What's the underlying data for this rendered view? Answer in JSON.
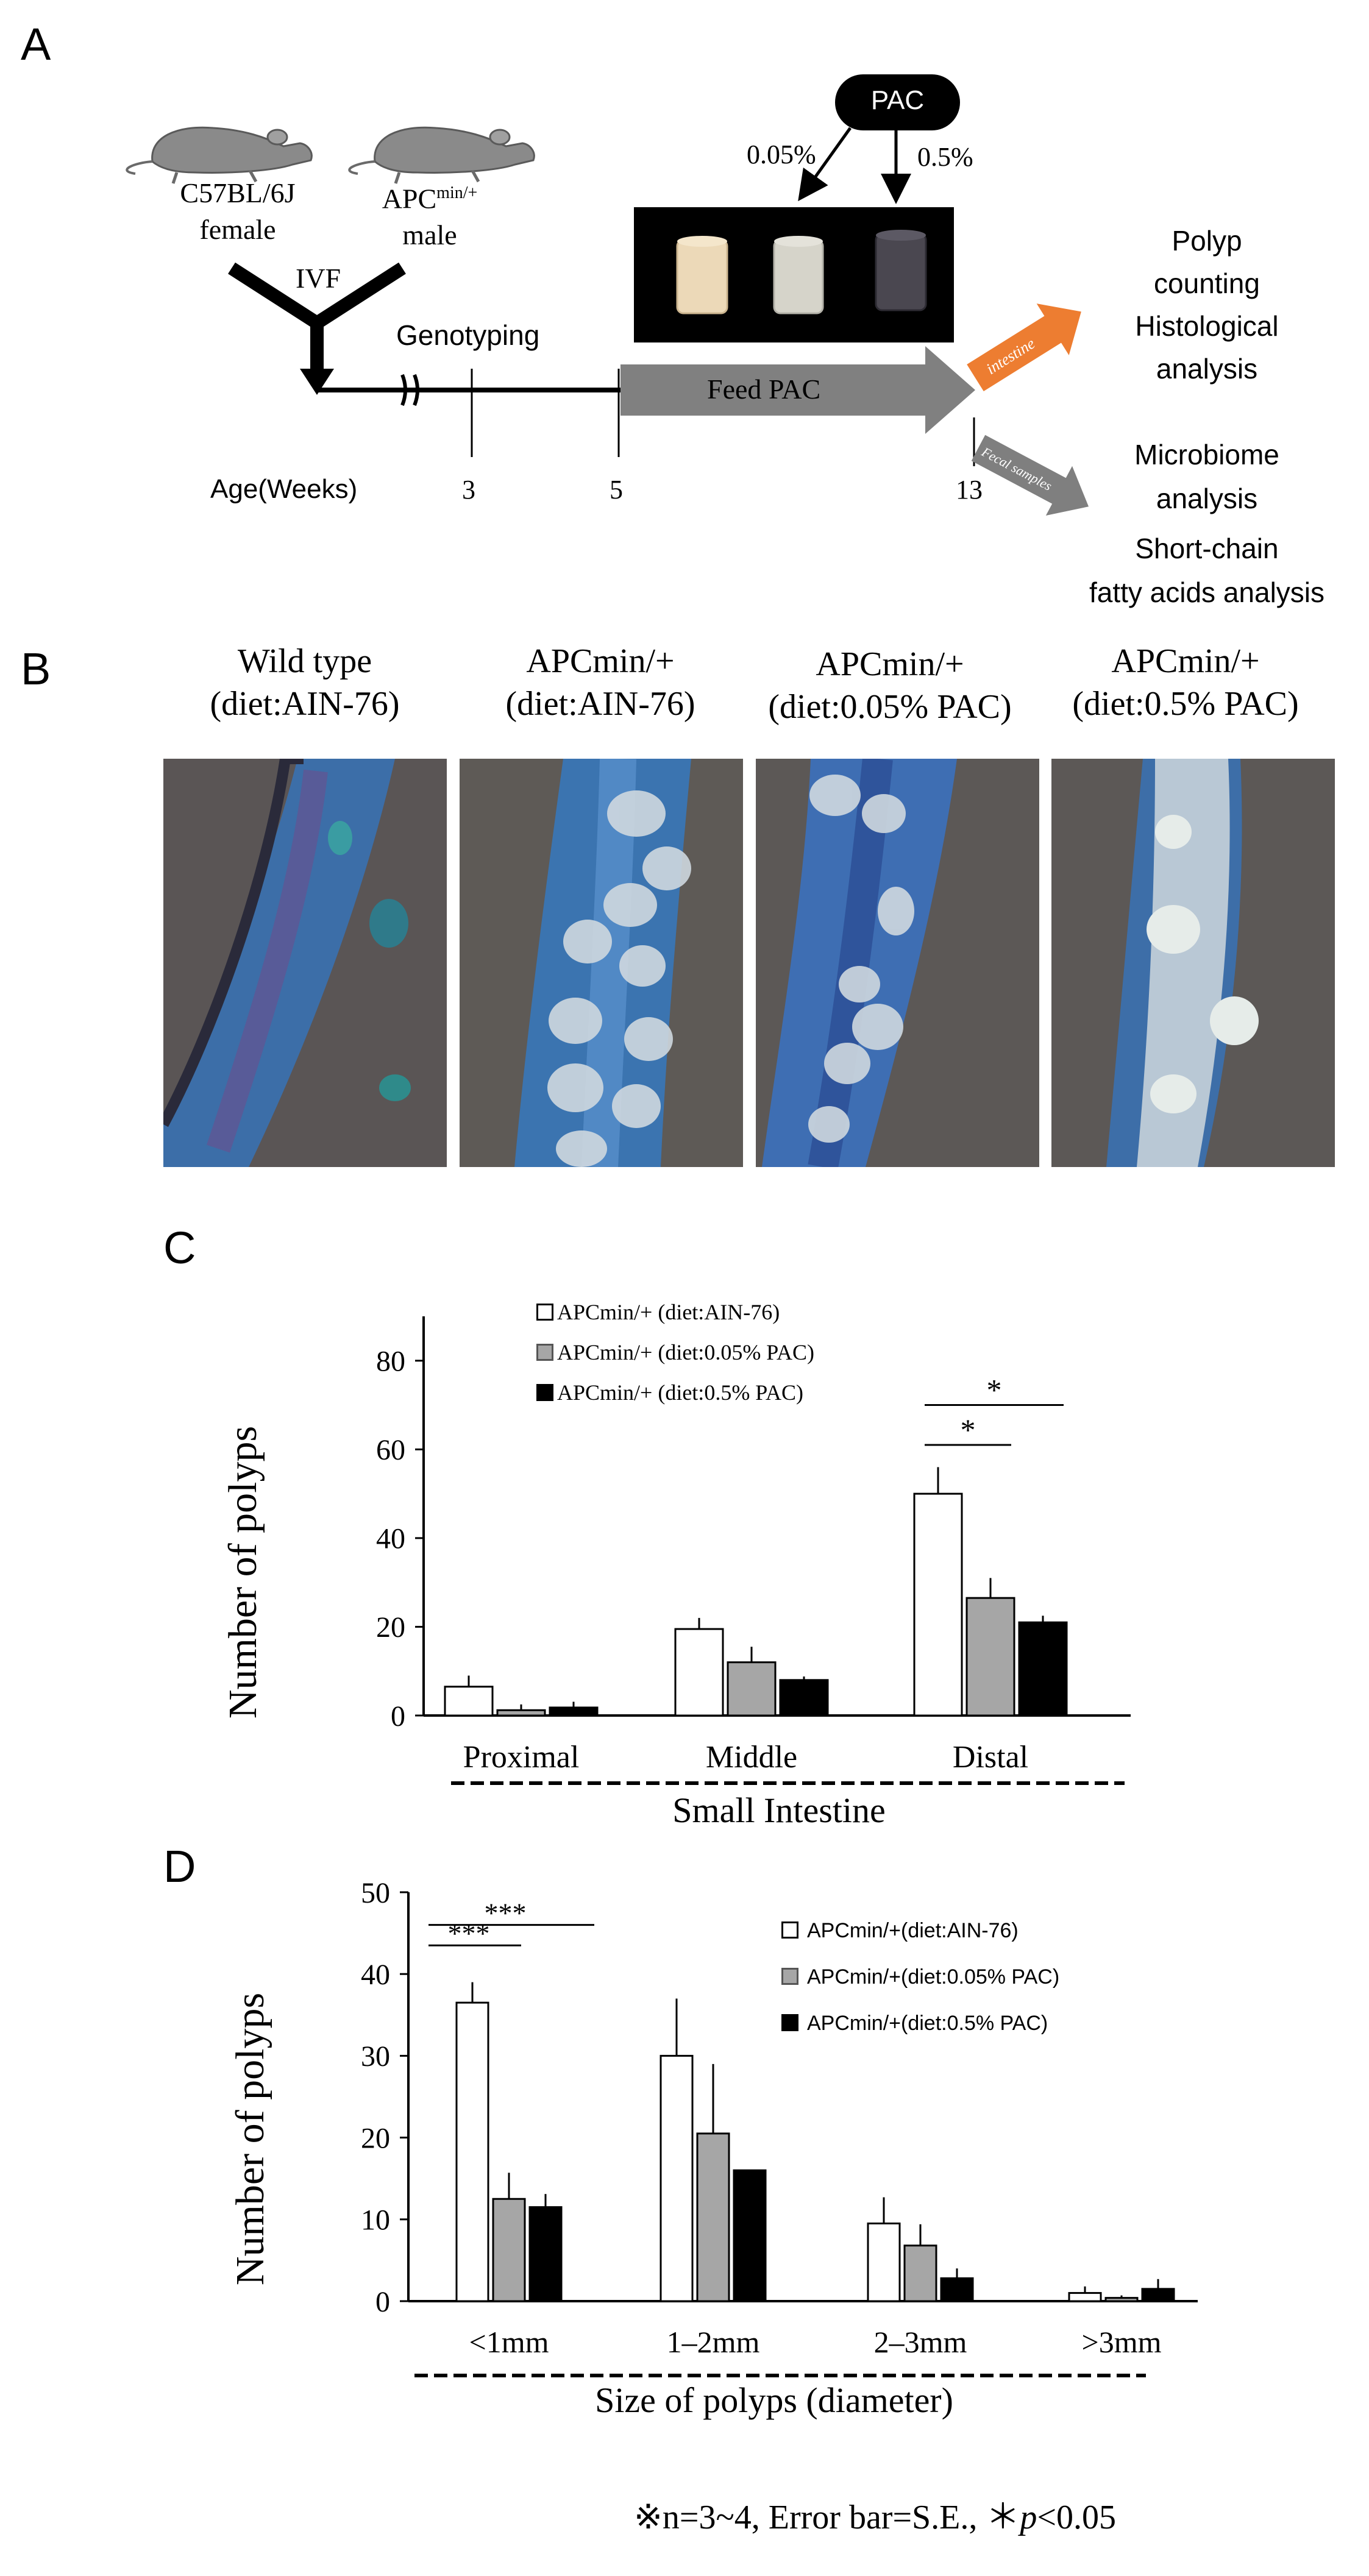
{
  "panel_a": {
    "letter": "A",
    "mouse1_label_1": "C57BL/6J",
    "mouse1_label_2": "female",
    "mouse2_label_1": "APC",
    "mouse2_label_sup": "min/+",
    "mouse2_label_2": "male",
    "ivf": "IVF",
    "genotyping": "Genotyping",
    "pac_label": "PAC",
    "pac_pct_low": "0.05%",
    "pac_pct_high": "0.5%",
    "feed_pac": "Feed PAC",
    "age_label": "Age(Weeks)",
    "week_3": "3",
    "week_5": "5",
    "week_13": "13",
    "arrow_intestine": "intestine",
    "arrow_fecal": "Fecal samples",
    "out1_l1": "Polyp",
    "out1_l2": "counting",
    "out1_l3": "Histological",
    "out1_l4": "analysis",
    "out2_l1": "Microbiome",
    "out2_l2": "analysis",
    "out2_l3": "Short-chain",
    "out2_l4": "fatty acids analysis",
    "colors": {
      "orange": "#ed7d31",
      "gray_arrow": "#7f7f7f",
      "pellet_light": "#ecd9b8",
      "pellet_mid": "#d8d6cc",
      "pellet_dark": "#4a4750"
    }
  },
  "panel_b": {
    "letter": "B",
    "groups": [
      {
        "line1": "Wild type",
        "line2": "(diet:AIN-76)"
      },
      {
        "line1": "APCmin/+",
        "line2": "(diet:AIN-76)"
      },
      {
        "line1": "APCmin/+",
        "line2": "(diet:0.05% PAC)"
      },
      {
        "line1": "APCmin/+",
        "line2": "(diet:0.5% PAC)"
      }
    ]
  },
  "chart_data": [
    {
      "panel": "C",
      "type": "bar",
      "categories": [
        "Proximal",
        "Middle",
        "Distal"
      ],
      "group_label": "Small Intestine",
      "ylabel": "Number of  polyps",
      "ylim": [
        0,
        90
      ],
      "yticks": [
        0,
        20,
        40,
        60,
        80
      ],
      "series": [
        {
          "name": "APCmin/+ (diet:AIN-76)",
          "color": "#ffffff",
          "values": [
            6.5,
            19.5,
            50
          ],
          "errors": [
            2.5,
            2.5,
            6
          ]
        },
        {
          "name": "APCmin/+ (diet:0.05% PAC)",
          "color": "#a6a6a6",
          "values": [
            1.2,
            12,
            26.5
          ],
          "errors": [
            1.3,
            3.5,
            4.5
          ]
        },
        {
          "name": "APCmin/+ (diet:0.5% PAC)",
          "color": "#000000",
          "values": [
            1.8,
            8,
            21
          ],
          "errors": [
            1.3,
            0.8,
            1.5
          ]
        }
      ],
      "significance": [
        {
          "category": "Distal",
          "from": 0,
          "to": 1,
          "label": "*"
        },
        {
          "category": "Distal",
          "from": 0,
          "to": 2,
          "label": "*"
        }
      ],
      "legend": "top-center"
    },
    {
      "panel": "D",
      "type": "bar",
      "categories": [
        "<1mm",
        "1–2mm",
        "2–3mm",
        ">3mm"
      ],
      "xlabel": "Size of polyps (diameter)",
      "ylabel": "Number of polyps",
      "ylim": [
        0,
        50
      ],
      "yticks": [
        0,
        10,
        20,
        30,
        40,
        50
      ],
      "series": [
        {
          "name": "APCmin/+(diet:AIN-76)",
          "color": "#ffffff",
          "values": [
            36.5,
            30,
            9.5,
            1
          ],
          "errors": [
            2.5,
            7,
            3.2,
            0.8
          ]
        },
        {
          "name": "APCmin/+(diet:0.05% PAC)",
          "color": "#a6a6a6",
          "values": [
            12.5,
            20.5,
            6.8,
            0.4
          ],
          "errors": [
            3.2,
            8.5,
            2.6,
            0.3
          ]
        },
        {
          "name": "APCmin/+(diet:0.5% PAC)",
          "color": "#000000",
          "values": [
            11.5,
            16,
            2.8,
            1.5
          ],
          "errors": [
            1.6,
            0,
            1.2,
            1.2
          ]
        }
      ],
      "significance": [
        {
          "category": "<1mm",
          "from": 0,
          "to": 1,
          "label": "***"
        },
        {
          "category": "<1mm",
          "from": 0,
          "to": 2,
          "label": "***"
        }
      ],
      "legend": "top-right"
    }
  ],
  "footnote": {
    "prefix": "※n=3~4, Error bar=S.E., ＊",
    "p": "p",
    "suffix": "<0.05"
  }
}
